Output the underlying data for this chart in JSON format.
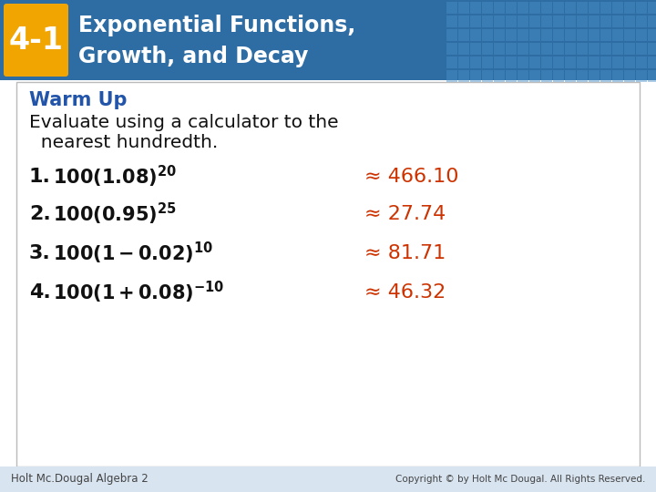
{
  "header_badge_text": "4-1",
  "header_badge_bg": "#f0a500",
  "header_badge_text_color": "#ffffff",
  "header_title_line1": "Exponential Functions,",
  "header_title_line2": "Growth, and Decay",
  "header_bg": "#2e6da4",
  "header_text_color": "#ffffff",
  "header_pattern_color": "#4a8fc8",
  "body_bg": "#ffffff",
  "body_border_color": "#bbbbbb",
  "warm_up_label": "Warm Up",
  "warm_up_color": "#2255aa",
  "instruction_line1": "Evaluate using a calculator to the",
  "instruction_line2": "  nearest hundredth.",
  "instruction_color": "#111111",
  "problems": [
    {
      "num": "1.",
      "expr": "$\\mathbf{100(1.08)^{20}}$",
      "result": "≈ 466.10"
    },
    {
      "num": "2.",
      "expr": "$\\mathbf{100(0.95)^{25}}$",
      "result": "≈ 27.74"
    },
    {
      "num": "3.",
      "expr": "$\\mathbf{100(1 - 0.02)^{10}}$",
      "result": "≈ 81.71"
    },
    {
      "num": "4.",
      "expr": "$\\mathbf{100(1 + 0.08)^{-10}}$",
      "result": "≈ 46.32"
    }
  ],
  "problem_num_color": "#111111",
  "problem_expr_color": "#111111",
  "problem_result_color": "#cc3300",
  "footer_text_left": "Holt Mc.Dougal Algebra 2",
  "footer_text_right": "Copyright © by Holt Mc Dougal. All Rights Reserved.",
  "footer_color": "#444444",
  "footer_bg": "#d8e4f0"
}
